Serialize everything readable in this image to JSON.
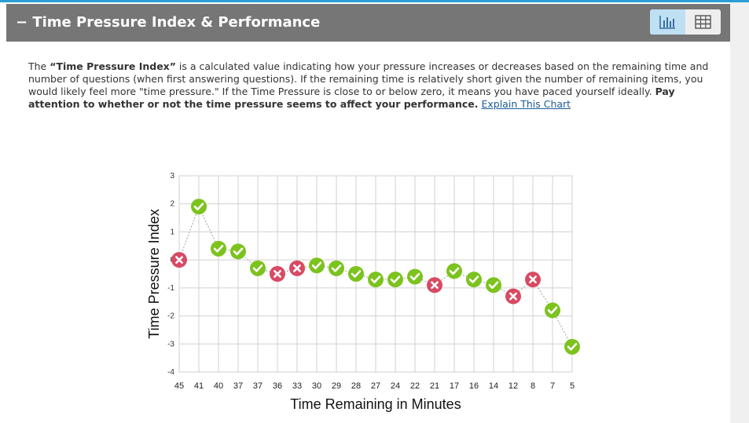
{
  "section": {
    "title": "− Time Pressure Index & Performance",
    "view_chart_icon": "bar-chart-icon",
    "view_table_icon": "table-grid-icon"
  },
  "description": {
    "t1": "The ",
    "b1": "“Time Pressure Index”",
    "t2": " is a calculated value indicating how your pressure increases or decreases based on the remaining time and number of questions (when first answering questions). If the remaining time is relatively short given the number of remaining items, you would likely feel more \"time pressure.\" If the Time Pressure is close to or below zero, it means you have paced yourself ideally. ",
    "b2": "Pay attention to whether or not the time pressure seems to affect your performance.",
    "link": "Explain This Chart"
  },
  "colors": {
    "header": "#767676",
    "accent": "#2b9ed6",
    "correct": "#7cc31e",
    "incorrect": "#d84a63"
  },
  "chart_data": {
    "type": "line",
    "xlabel": "Time Remaining in Minutes",
    "ylabel": "Time Pressure Index",
    "ylim": [
      -4,
      3
    ],
    "yticks": [
      "3",
      "2",
      "1",
      "0",
      "-1",
      "-2",
      "-3",
      "-4"
    ],
    "categories": [
      "45",
      "41",
      "40",
      "37",
      "37",
      "36",
      "33",
      "30",
      "29",
      "28",
      "27",
      "24",
      "22",
      "21",
      "17",
      "16",
      "14",
      "12",
      "8",
      "7",
      "5"
    ],
    "values": [
      0.0,
      1.9,
      0.4,
      0.3,
      -0.3,
      -0.5,
      -0.3,
      -0.2,
      -0.3,
      -0.5,
      -0.7,
      -0.7,
      -0.6,
      -0.9,
      -0.4,
      -0.7,
      -0.9,
      -1.3,
      -0.7,
      -1.8,
      -3.1
    ],
    "results": [
      "incorrect",
      "correct",
      "correct",
      "correct",
      "correct",
      "incorrect",
      "incorrect",
      "correct",
      "correct",
      "correct",
      "correct",
      "correct",
      "correct",
      "incorrect",
      "correct",
      "correct",
      "correct",
      "incorrect",
      "incorrect",
      "correct",
      "correct"
    ],
    "grid": true,
    "legend": "none"
  }
}
